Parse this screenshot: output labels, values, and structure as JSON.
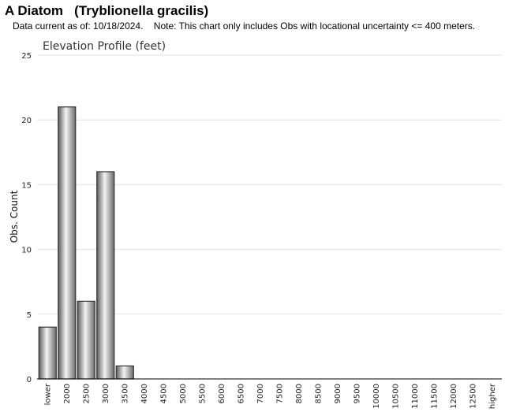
{
  "header": {
    "title": "A Diatom   (Tryblionella gracilis)",
    "subtitle": "Data current as of: 10/18/2024.    Note: This chart only includes Obs with locational uncertainty <= 400 meters."
  },
  "chart_data": {
    "type": "bar",
    "title": "Elevation Profile (feet)",
    "xlabel": "",
    "ylabel": "Obs. Count",
    "ylim": [
      0,
      25
    ],
    "yticks": [
      0,
      5,
      10,
      15,
      20,
      25
    ],
    "grid": true,
    "legend": "none",
    "categories": [
      "lower",
      "2000",
      "2500",
      "3000",
      "3500",
      "4000",
      "4500",
      "5000",
      "5500",
      "6000",
      "6500",
      "7000",
      "7500",
      "8000",
      "8500",
      "9000",
      "9500",
      "10000",
      "10500",
      "11000",
      "11500",
      "12000",
      "12500",
      "higher"
    ],
    "values": [
      4,
      21,
      6,
      16,
      1,
      0,
      0,
      0,
      0,
      0,
      0,
      0,
      0,
      0,
      0,
      0,
      0,
      0,
      0,
      0,
      0,
      0,
      0,
      0
    ],
    "colors": {
      "bar_dark": "#555555",
      "bar_light": "#f2f2f2",
      "grid": "#e3e3e3",
      "axis": "#000000"
    }
  }
}
